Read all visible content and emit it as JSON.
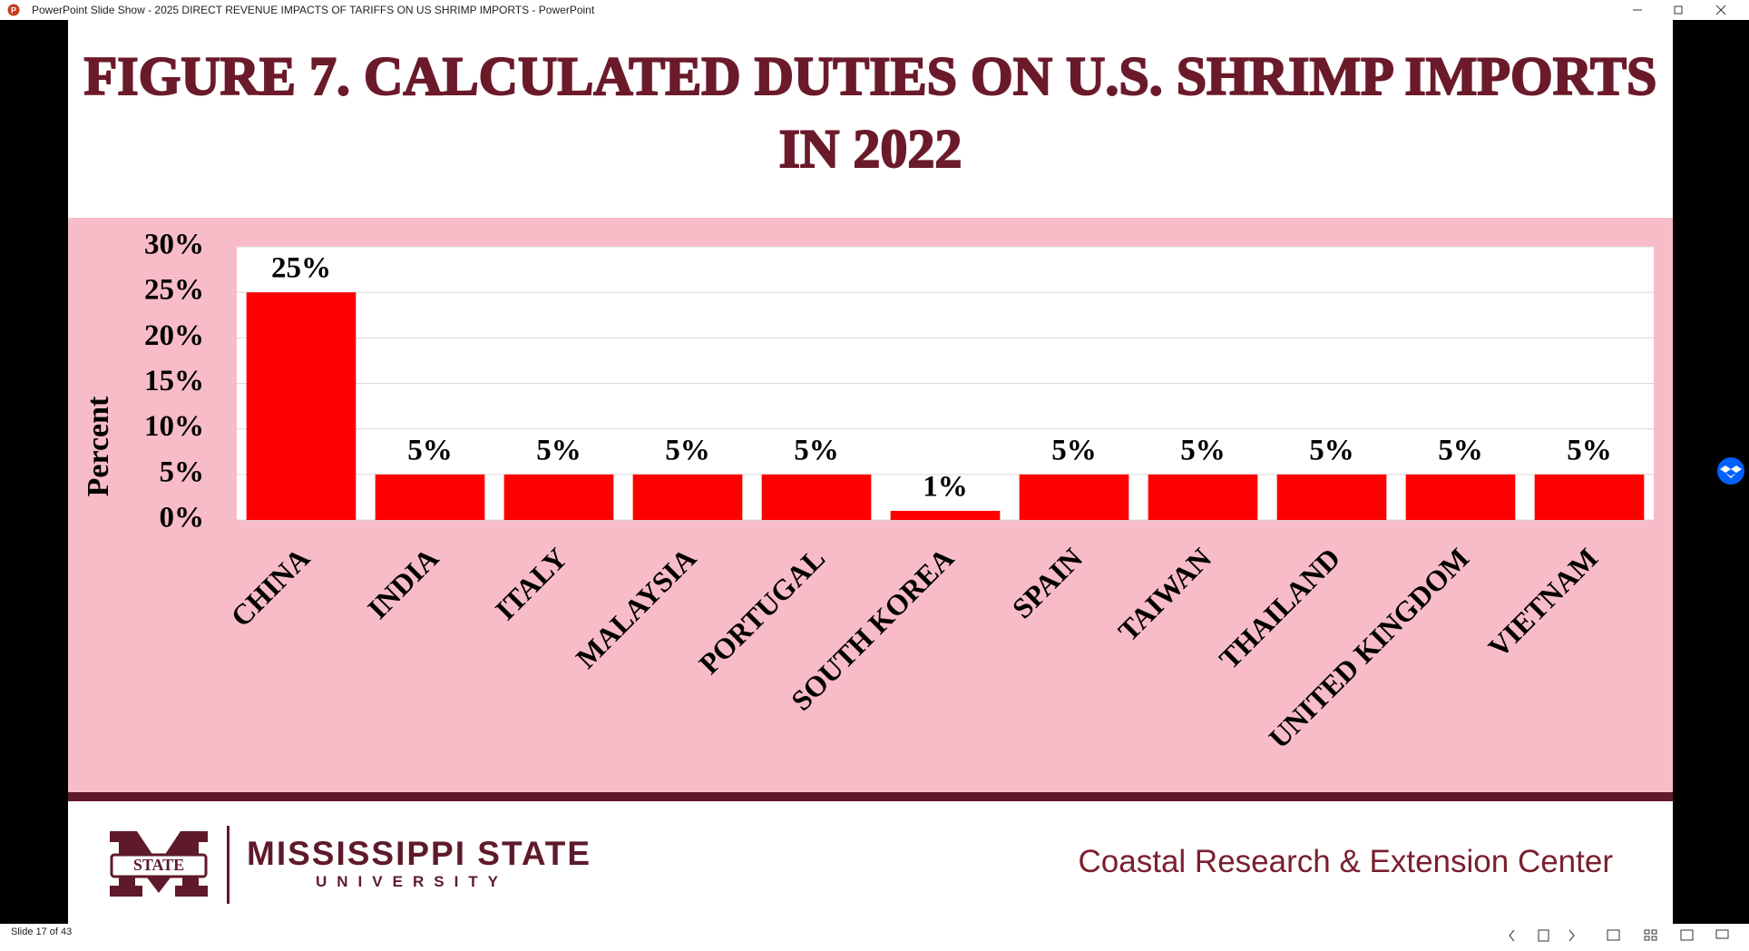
{
  "window": {
    "title": "PowerPoint Slide Show  -  2025 DIRECT REVENUE IMPACTS OF TARIFFS ON US SHRIMP IMPORTS - PowerPoint"
  },
  "chart_data": {
    "type": "bar",
    "title": "FIGURE 7. CALCULATED DUTIES ON U.S. SHRIMP IMPORTS IN 2022",
    "y_label": "Percent",
    "categories": [
      "CHINA",
      "INDIA",
      "ITALY",
      "MALAYSIA",
      "PORTUGAL",
      "SOUTH KOREA",
      "SPAIN",
      "TAIWAN",
      "THAILAND",
      "UNITED KINGDOM",
      "VIETNAM"
    ],
    "values": [
      25,
      5,
      5,
      5,
      5,
      1,
      5,
      5,
      5,
      5,
      5
    ],
    "value_labels": [
      "25%",
      "5%",
      "5%",
      "5%",
      "5%",
      "1%",
      "5%",
      "5%",
      "5%",
      "5%",
      "5%"
    ],
    "color": "#ff0000",
    "ylim": [
      0,
      30
    ],
    "yticks": [
      {
        "value": 0,
        "label": "0%"
      },
      {
        "value": 5,
        "label": "5%"
      },
      {
        "value": 10,
        "label": "10%"
      },
      {
        "value": 15,
        "label": "15%"
      },
      {
        "value": 20,
        "label": "20%"
      },
      {
        "value": 25,
        "label": "25%"
      },
      {
        "value": 30,
        "label": "30%"
      }
    ],
    "grid": true
  },
  "footer": {
    "logo_badge": "STATE",
    "university": "MISSISSIPPI STATE",
    "university_sub": "UNIVERSITY",
    "center": "Coastal Research & Extension Center"
  },
  "status": {
    "slide": "Slide 17 of 43"
  }
}
